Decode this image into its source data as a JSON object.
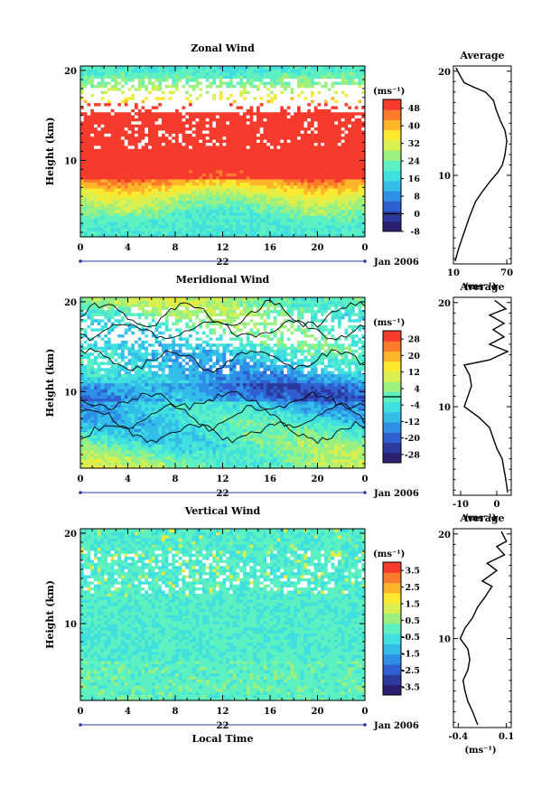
{
  "figure": {
    "x_axis_label": "Local Time",
    "date_label": "Jan 2006",
    "day_label": "22"
  },
  "colors": {
    "palette": [
      "#2a1f6e",
      "#2b3a9c",
      "#2f5fd1",
      "#2f8fe6",
      "#33bde8",
      "#40e0e0",
      "#5df0c0",
      "#9cf080",
      "#d8f050",
      "#ffe830",
      "#ffb42a",
      "#ff7a2a",
      "#f53a2e"
    ],
    "missing": "#ffffff",
    "contour": "#000000",
    "profile": "#000000"
  },
  "chart_data": [
    {
      "type": "heatmap",
      "id": "zonal",
      "title": "Zonal Wind",
      "ylabel": "Height (km)",
      "xlabel": "",
      "x_ticks": [
        "0",
        "4",
        "8",
        "12",
        "16",
        "20",
        "0"
      ],
      "x_range": [
        0,
        24
      ],
      "y_ticks": [
        "10",
        "20"
      ],
      "y_range": [
        1.5,
        20.5
      ],
      "unit": "(ms⁻¹)",
      "colorbar_ticks": [
        "48",
        "40",
        "32",
        "24",
        "16",
        "8",
        "0",
        "-8"
      ],
      "colorbar_range": [
        -8,
        52
      ],
      "zero_line": 0,
      "grid": false,
      "profile": {
        "title": "Average",
        "xlabel": "(ms⁻¹)",
        "x_ticks": [
          "10",
          "70"
        ],
        "x_range": [
          10,
          75
        ],
        "points": [
          [
            12,
            1.8
          ],
          [
            16,
            3
          ],
          [
            22,
            4.5
          ],
          [
            28,
            6
          ],
          [
            35,
            7.5
          ],
          [
            43,
            8.5
          ],
          [
            52,
            9.5
          ],
          [
            60,
            10.3
          ],
          [
            65,
            11
          ],
          [
            68,
            12
          ],
          [
            70,
            13.3
          ],
          [
            68,
            14.3
          ],
          [
            63,
            15.2
          ],
          [
            58,
            16.3
          ],
          [
            55,
            17.2
          ],
          [
            46,
            18
          ],
          [
            32,
            18.5
          ],
          [
            22,
            18.9
          ],
          [
            18,
            19.5
          ],
          [
            13,
            20.3
          ]
        ]
      }
    },
    {
      "type": "heatmap",
      "id": "meridional",
      "title": "Meridional Wind",
      "ylabel": "Height (km)",
      "xlabel": "",
      "x_ticks": [
        "0",
        "4",
        "8",
        "12",
        "16",
        "20",
        "0"
      ],
      "x_range": [
        0,
        24
      ],
      "y_ticks": [
        "10",
        "20"
      ],
      "y_range": [
        1.5,
        20.5
      ],
      "unit": "(ms⁻¹)",
      "colorbar_ticks": [
        "28",
        "20",
        "12",
        "4",
        "-4",
        "-12",
        "-20",
        "-28"
      ],
      "colorbar_range": [
        -32,
        32
      ],
      "zero_line": 0,
      "grid": false,
      "profile": {
        "title": "Average",
        "xlabel": "(ms⁻¹)",
        "x_ticks": [
          "-10",
          "0"
        ],
        "x_range": [
          -12,
          4
        ],
        "points": [
          [
            3,
            1.8
          ],
          [
            2.5,
            3
          ],
          [
            2,
            4
          ],
          [
            1.5,
            5
          ],
          [
            0,
            6
          ],
          [
            -1,
            7
          ],
          [
            -2,
            8
          ],
          [
            -5,
            9
          ],
          [
            -9,
            10
          ],
          [
            -8,
            11
          ],
          [
            -7,
            12
          ],
          [
            -7.5,
            13
          ],
          [
            -9,
            14
          ],
          [
            -2,
            14.5
          ],
          [
            3,
            15.3
          ],
          [
            -2,
            16
          ],
          [
            2,
            16.7
          ],
          [
            -1,
            17.4
          ],
          [
            2,
            18
          ],
          [
            -2,
            18.8
          ],
          [
            2.5,
            19.4
          ],
          [
            -0.5,
            20.2
          ]
        ]
      }
    },
    {
      "type": "heatmap",
      "id": "vertical",
      "title": "Vertical Wind",
      "ylabel": "Height (km)",
      "xlabel": "Local Time",
      "x_ticks": [
        "0",
        "4",
        "8",
        "12",
        "16",
        "20",
        "0"
      ],
      "x_range": [
        0,
        24
      ],
      "y_ticks": [
        "10",
        "20"
      ],
      "y_range": [
        1.5,
        20.5
      ],
      "unit": "(ms⁻¹)",
      "colorbar_ticks": [
        "3.5",
        "2.5",
        "1.5",
        "0.5",
        "-0.5",
        "-1.5",
        "-2.5",
        "-3.5"
      ],
      "colorbar_range": [
        -4,
        4
      ],
      "zero_line": null,
      "grid": false,
      "profile": {
        "title": "Average",
        "xlabel": "(ms⁻¹)",
        "x_ticks": [
          "-0.4",
          "0.1"
        ],
        "x_range": [
          -0.45,
          0.15
        ],
        "points": [
          [
            -0.2,
            1.8
          ],
          [
            -0.25,
            3
          ],
          [
            -0.3,
            4
          ],
          [
            -0.33,
            5
          ],
          [
            -0.35,
            6
          ],
          [
            -0.3,
            7
          ],
          [
            -0.28,
            8
          ],
          [
            -0.3,
            9
          ],
          [
            -0.38,
            10
          ],
          [
            -0.33,
            11
          ],
          [
            -0.25,
            12
          ],
          [
            -0.2,
            13
          ],
          [
            -0.12,
            14
          ],
          [
            -0.05,
            15
          ],
          [
            -0.15,
            15.5
          ],
          [
            0.0,
            16.5
          ],
          [
            -0.1,
            17.2
          ],
          [
            0.08,
            18
          ],
          [
            0.0,
            18.8
          ],
          [
            0.1,
            19.3
          ],
          [
            0.05,
            20.2
          ]
        ]
      }
    }
  ]
}
